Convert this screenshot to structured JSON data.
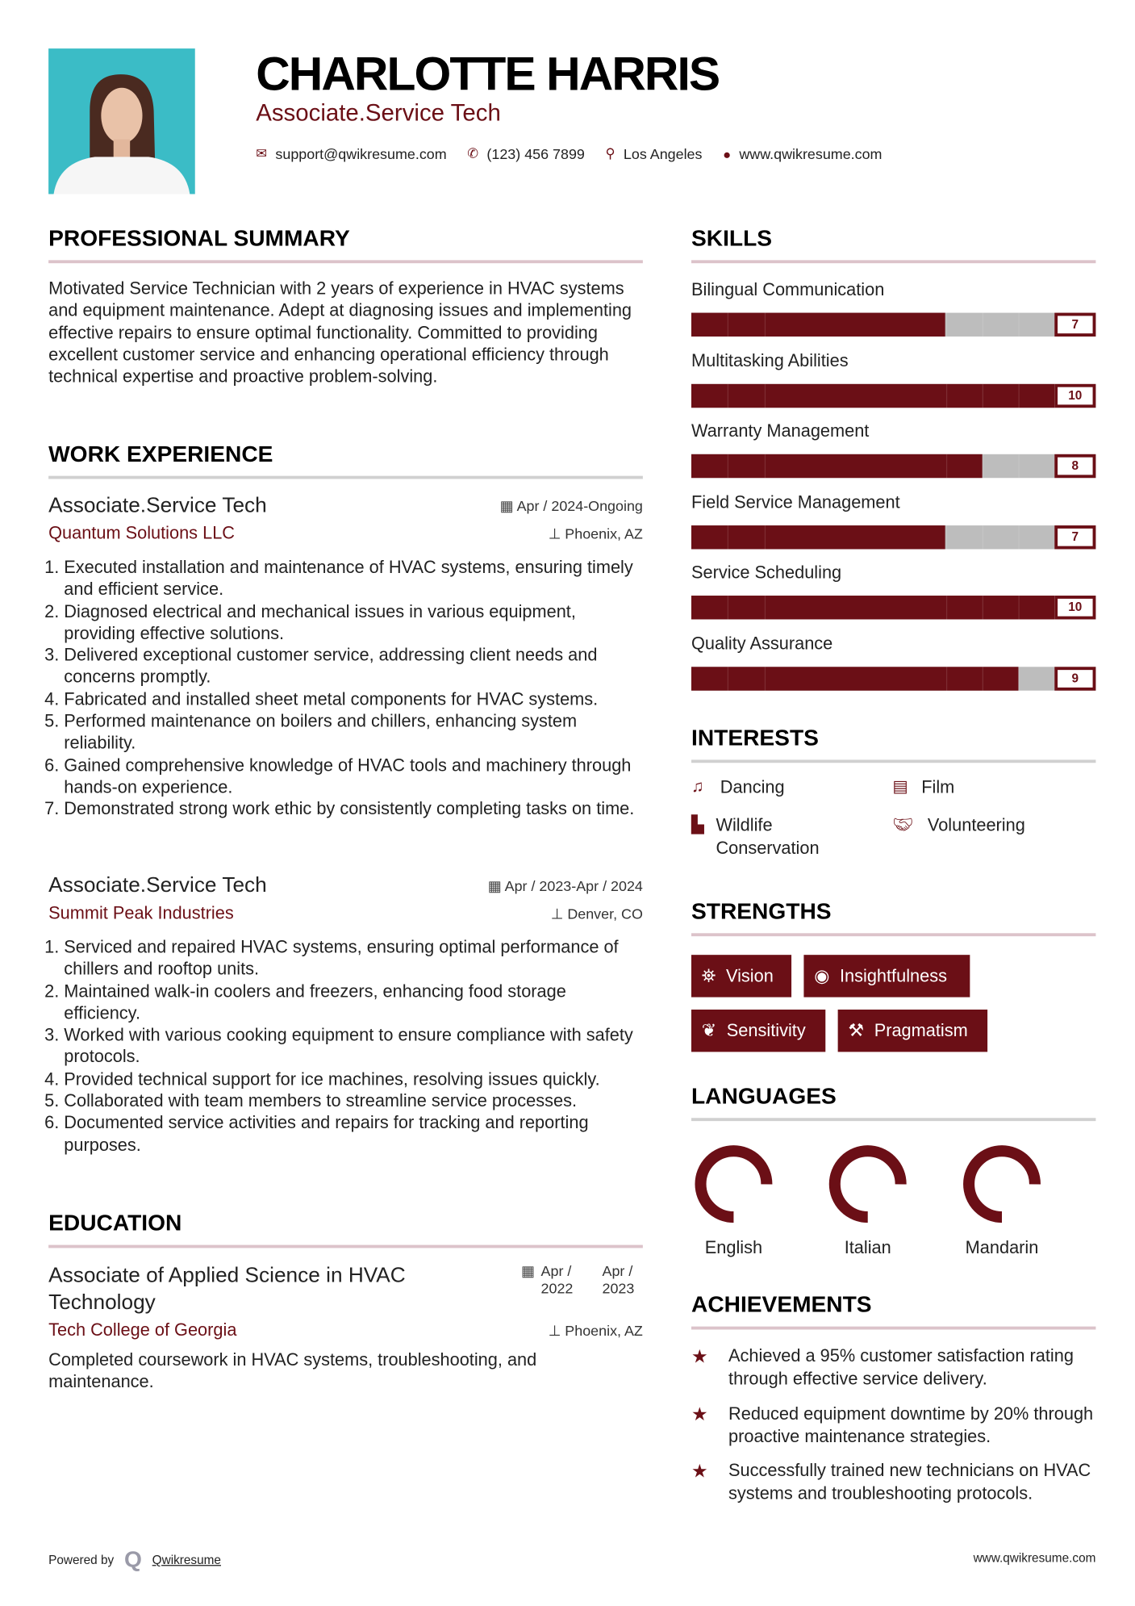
{
  "header": {
    "name": "CHARLOTTE HARRIS",
    "title": "Associate.Service Tech",
    "email": "support@qwikresume.com",
    "phone": "(123) 456 7899",
    "location": "Los Angeles",
    "website": "www.qwikresume.com"
  },
  "summary": {
    "heading": "PROFESSIONAL SUMMARY",
    "text": "Motivated Service Technician with 2 years of experience in HVAC systems and equipment maintenance. Adept at diagnosing issues and implementing effective repairs to ensure optimal functionality. Committed to providing excellent customer service and enhancing operational efficiency through technical expertise and proactive problem-solving."
  },
  "experience": {
    "heading": "WORK EXPERIENCE",
    "jobs": [
      {
        "title": "Associate.Service Tech",
        "company": "Quantum Solutions LLC",
        "dates": "Apr / 2024-Ongoing",
        "location": "Phoenix, AZ",
        "bullets": [
          "Executed installation and maintenance of HVAC systems, ensuring timely and efficient service.",
          "Diagnosed electrical and mechanical issues in various equipment, providing effective solutions.",
          "Delivered exceptional customer service, addressing client needs and concerns promptly.",
          "Fabricated and installed sheet metal components for HVAC systems.",
          "Performed maintenance on boilers and chillers, enhancing system reliability.",
          "Gained comprehensive knowledge of HVAC tools and machinery through hands-on experience.",
          "Demonstrated strong work ethic by consistently completing tasks on time."
        ]
      },
      {
        "title": "Associate.Service Tech",
        "company": "Summit Peak Industries",
        "dates": "Apr / 2023-Apr / 2024",
        "location": "Denver, CO",
        "bullets": [
          "Serviced and repaired HVAC systems, ensuring optimal performance of chillers and rooftop units.",
          "Maintained walk-in coolers and freezers, enhancing food storage efficiency.",
          "Worked with various cooking equipment to ensure compliance with safety protocols.",
          "Provided technical support for ice machines, resolving issues quickly.",
          "Collaborated with team members to streamline service processes.",
          "Documented service activities and repairs for tracking and reporting purposes."
        ]
      }
    ]
  },
  "education": {
    "heading": "EDUCATION",
    "degree": "Associate of Applied Science in HVAC Technology",
    "school": "Tech College of Georgia",
    "start": "Apr / 2022",
    "end": "Apr / 2023",
    "location": "Phoenix, AZ",
    "description": "Completed coursework in HVAC systems, troubleshooting, and maintenance."
  },
  "skills": {
    "heading": "SKILLS",
    "max": 10,
    "items": [
      {
        "label": "Bilingual Communication",
        "value": 7
      },
      {
        "label": "Multitasking Abilities",
        "value": 10
      },
      {
        "label": "Warranty Management",
        "value": 8
      },
      {
        "label": "Field Service Management",
        "value": 7
      },
      {
        "label": "Service Scheduling",
        "value": 10
      },
      {
        "label": "Quality Assurance",
        "value": 9
      }
    ]
  },
  "interests": {
    "heading": "INTERESTS",
    "items": [
      {
        "label": "Dancing",
        "icon": "music-icon"
      },
      {
        "label": "Film",
        "icon": "film-icon"
      },
      {
        "label": "Wildlife Conservation",
        "icon": "wildlife-icon"
      },
      {
        "label": "Volunteering",
        "icon": "handshake-icon"
      }
    ]
  },
  "strengths": {
    "heading": "STRENGTHS",
    "items": [
      {
        "label": "Vision",
        "icon": "binoculars-icon"
      },
      {
        "label": "Insightfulness",
        "icon": "eye-icon"
      },
      {
        "label": "Sensitivity",
        "icon": "leaf-icon"
      },
      {
        "label": "Pragmatism",
        "icon": "gavel-icon"
      }
    ]
  },
  "languages": {
    "heading": "LANGUAGES",
    "items": [
      {
        "label": "English",
        "level": 0.75
      },
      {
        "label": "Italian",
        "level": 0.75
      },
      {
        "label": "Mandarin",
        "level": 0.75
      }
    ]
  },
  "achievements": {
    "heading": "ACHIEVEMENTS",
    "items": [
      "Achieved a 95% customer satisfaction rating through effective service delivery.",
      "Reduced equipment downtime by 20% through proactive maintenance strategies.",
      "Successfully trained new technicians on HVAC systems and troubleshooting protocols."
    ]
  },
  "footer": {
    "powered_by": "Powered by",
    "brand": "Qwikresume",
    "website": "www.qwikresume.com"
  },
  "colors": {
    "accent": "#6b0f16",
    "photo_bg": "#3bbcc6",
    "bar_empty": "#bdbdbd"
  }
}
